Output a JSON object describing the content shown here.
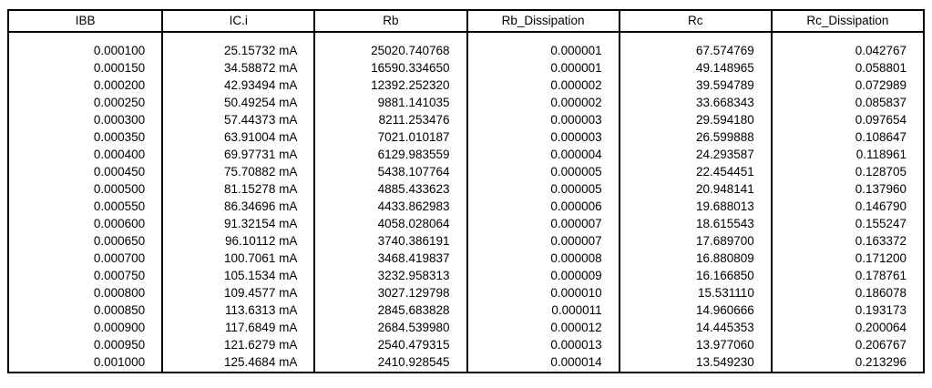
{
  "window": {
    "background_color": "#ffffff",
    "border_color": "#000000",
    "text_color": "#000000"
  },
  "chart_data": {
    "type": "table",
    "title": "",
    "columns": [
      "IBB",
      "IC.i",
      "Rb",
      "Rb_Dissipation",
      "Rc",
      "Rc_Dissipation"
    ],
    "rows": [
      [
        "0.000100",
        "25.15732 mA",
        "25020.740768",
        "0.000001",
        "67.574769",
        "0.042767"
      ],
      [
        "0.000150",
        "34.58872 mA",
        "16590.334650",
        "0.000001",
        "49.148965",
        "0.058801"
      ],
      [
        "0.000200",
        "42.93494 mA",
        "12392.252320",
        "0.000002",
        "39.594789",
        "0.072989"
      ],
      [
        "0.000250",
        "50.49254 mA",
        "9881.141035",
        "0.000002",
        "33.668343",
        "0.085837"
      ],
      [
        "0.000300",
        "57.44373 mA",
        "8211.253476",
        "0.000003",
        "29.594180",
        "0.097654"
      ],
      [
        "0.000350",
        "63.91004 mA",
        "7021.010187",
        "0.000003",
        "26.599888",
        "0.108647"
      ],
      [
        "0.000400",
        "69.97731 mA",
        "6129.983559",
        "0.000004",
        "24.293587",
        "0.118961"
      ],
      [
        "0.000450",
        "75.70882 mA",
        "5438.107764",
        "0.000005",
        "22.454451",
        "0.128705"
      ],
      [
        "0.000500",
        "81.15278 mA",
        "4885.433623",
        "0.000005",
        "20.948141",
        "0.137960"
      ],
      [
        "0.000550",
        "86.34696 mA",
        "4433.862983",
        "0.000006",
        "19.688013",
        "0.146790"
      ],
      [
        "0.000600",
        "91.32154 mA",
        "4058.028064",
        "0.000007",
        "18.615543",
        "0.155247"
      ],
      [
        "0.000650",
        "96.10112 mA",
        "3740.386191",
        "0.000007",
        "17.689700",
        "0.163372"
      ],
      [
        "0.000700",
        "100.7061 mA",
        "3468.419837",
        "0.000008",
        "16.880809",
        "0.171200"
      ],
      [
        "0.000750",
        "105.1534 mA",
        "3232.958313",
        "0.000009",
        "16.166850",
        "0.178761"
      ],
      [
        "0.000800",
        "109.4577 mA",
        "3027.129798",
        "0.000010",
        "15.531110",
        "0.186078"
      ],
      [
        "0.000850",
        "113.6313 mA",
        "2845.683828",
        "0.000011",
        "14.960666",
        "0.193173"
      ],
      [
        "0.000900",
        "117.6849 mA",
        "2684.539980",
        "0.000012",
        "14.445353",
        "0.200064"
      ],
      [
        "0.000950",
        "121.6279 mA",
        "2540.479315",
        "0.000013",
        "13.977060",
        "0.206767"
      ],
      [
        "0.001000",
        "125.4684 mA",
        "2410.928545",
        "0.000014",
        "13.549230",
        "0.213296"
      ]
    ]
  }
}
